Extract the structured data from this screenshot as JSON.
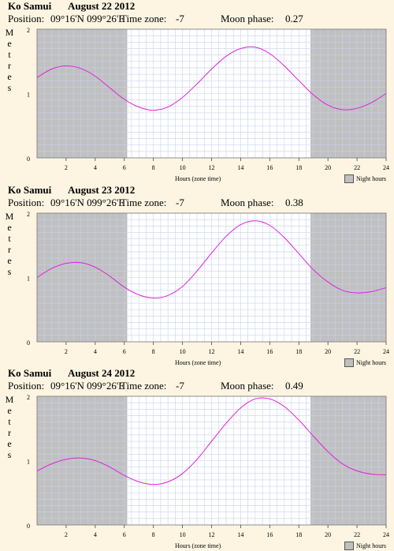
{
  "panels": [
    {
      "place": "Ko Samui",
      "date": "August 22 2012",
      "position_label": "Position:",
      "position": "09°16'N 099°26'E",
      "timezone_label": "Time zone:",
      "timezone": "-7",
      "moon_label": "Moon phase:",
      "moon_phase": "0.27"
    },
    {
      "place": "Ko Samui",
      "date": "August 23 2012",
      "position_label": "Position:",
      "position": "09°16'N 099°26'E",
      "timezone_label": "Time zone:",
      "timezone": "-7",
      "moon_label": "Moon phase:",
      "moon_phase": "0.38"
    },
    {
      "place": "Ko Samui",
      "date": "August 24 2012",
      "position_label": "Position:",
      "position": "09°16'N 099°26'E",
      "timezone_label": "Time zone:",
      "timezone": "-7",
      "moon_label": "Moon phase:",
      "moon_phase": "0.49"
    }
  ],
  "colors": {
    "background": "#fdf5e2",
    "night": "#c0c0c0",
    "grid": "#c8d2ee",
    "curve": "#e020e0"
  },
  "chart_data": [
    {
      "type": "line",
      "xlabel": "Hours (zone time)",
      "ylabel": "Metres",
      "xlim": [
        0,
        24
      ],
      "ylim": [
        0,
        2
      ],
      "x_ticks": [
        2,
        4,
        6,
        8,
        10,
        12,
        14,
        16,
        18,
        20,
        22,
        24
      ],
      "y_ticks": [
        0,
        1,
        2
      ],
      "grid": true,
      "legend": "Night hours",
      "night_hours": [
        [
          0,
          6.2
        ],
        [
          18.8,
          24
        ]
      ],
      "series": [
        {
          "x": [
            0,
            1,
            2,
            3,
            4,
            5,
            6,
            7,
            8,
            9,
            10,
            11,
            12,
            13,
            14,
            15,
            16,
            17,
            18,
            19,
            20,
            21,
            22,
            23,
            24
          ],
          "y": [
            1.25,
            1.38,
            1.43,
            1.39,
            1.27,
            1.09,
            0.91,
            0.79,
            0.74,
            0.79,
            0.94,
            1.15,
            1.38,
            1.58,
            1.7,
            1.72,
            1.62,
            1.43,
            1.2,
            0.98,
            0.82,
            0.75,
            0.77,
            0.86,
            1.0
          ]
        }
      ]
    },
    {
      "type": "line",
      "xlabel": "Hours (zone time)",
      "ylabel": "Metres",
      "xlim": [
        0,
        24
      ],
      "ylim": [
        0,
        2
      ],
      "x_ticks": [
        2,
        4,
        6,
        8,
        10,
        12,
        14,
        16,
        18,
        20,
        22,
        24
      ],
      "y_ticks": [
        0,
        1,
        2
      ],
      "grid": true,
      "legend": "Night hours",
      "night_hours": [
        [
          0,
          6.2
        ],
        [
          18.8,
          24
        ]
      ],
      "series": [
        {
          "x": [
            0,
            1,
            2,
            3,
            4,
            5,
            6,
            7,
            8,
            9,
            10,
            11,
            12,
            13,
            14,
            15,
            16,
            17,
            18,
            19,
            20,
            21,
            22,
            23,
            24
          ],
          "y": [
            1.0,
            1.14,
            1.22,
            1.23,
            1.16,
            1.02,
            0.85,
            0.73,
            0.68,
            0.72,
            0.86,
            1.1,
            1.38,
            1.64,
            1.82,
            1.88,
            1.81,
            1.62,
            1.37,
            1.12,
            0.93,
            0.8,
            0.76,
            0.78,
            0.84
          ]
        }
      ]
    },
    {
      "type": "line",
      "xlabel": "Hours (zone time)",
      "ylabel": "Metres",
      "xlim": [
        0,
        24
      ],
      "ylim": [
        0,
        2
      ],
      "x_ticks": [
        2,
        4,
        6,
        8,
        10,
        12,
        14,
        16,
        18,
        20,
        22,
        24
      ],
      "y_ticks": [
        0,
        1,
        2
      ],
      "grid": true,
      "legend": "Night hours",
      "night_hours": [
        [
          0,
          6.2
        ],
        [
          18.8,
          24
        ]
      ],
      "series": [
        {
          "x": [
            0,
            1,
            2,
            3,
            4,
            5,
            6,
            7,
            8,
            9,
            10,
            11,
            12,
            13,
            14,
            15,
            16,
            17,
            18,
            19,
            20,
            21,
            22,
            23,
            24
          ],
          "y": [
            0.84,
            0.95,
            1.02,
            1.04,
            1.0,
            0.9,
            0.77,
            0.67,
            0.63,
            0.67,
            0.8,
            1.02,
            1.3,
            1.58,
            1.82,
            1.96,
            1.96,
            1.84,
            1.63,
            1.38,
            1.14,
            0.95,
            0.84,
            0.79,
            0.78
          ]
        }
      ]
    }
  ]
}
